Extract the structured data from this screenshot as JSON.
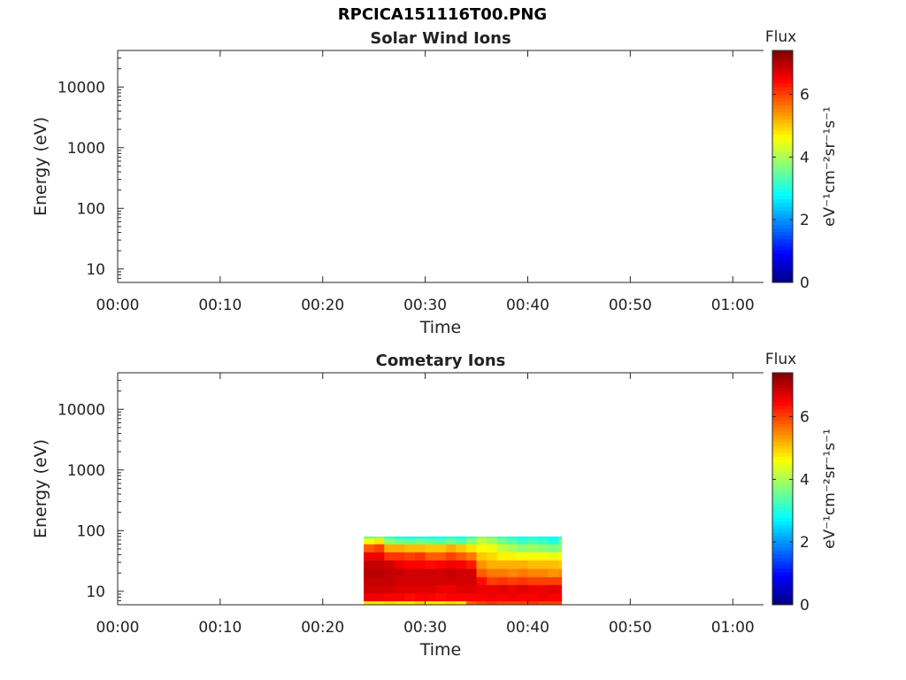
{
  "figure": {
    "title": "RPCICA151116T00.PNG"
  },
  "chart_data": [
    {
      "type": "heatmap",
      "title": "Solar Wind Ions",
      "xlabel": "Time",
      "ylabel": "Energy (eV)",
      "x_ticks": [
        "00:00",
        "00:10",
        "00:20",
        "00:30",
        "00:40",
        "00:50",
        "01:00"
      ],
      "xlim": [
        "00:00",
        "01:03"
      ],
      "y_scale": "log",
      "ylim": [
        6,
        40000
      ],
      "y_ticks": [
        "10",
        "100",
        "1000",
        "10000"
      ],
      "colorbar": {
        "label": "Flux",
        "unit": "eV⁻¹cm⁻²sr⁻¹s⁻¹",
        "range": [
          0,
          7.4
        ],
        "ticks": [
          "0",
          "2",
          "4",
          "6"
        ],
        "colormap": "jet"
      },
      "data": []
    },
    {
      "type": "heatmap",
      "title": "Cometary Ions",
      "xlabel": "Time",
      "ylabel": "Energy (eV)",
      "x_ticks": [
        "00:00",
        "00:10",
        "00:20",
        "00:30",
        "00:40",
        "00:50",
        "01:00"
      ],
      "xlim": [
        "00:00",
        "01:03"
      ],
      "y_scale": "log",
      "ylim": [
        6,
        40000
      ],
      "y_ticks": [
        "10",
        "100",
        "1000",
        "10000"
      ],
      "colorbar": {
        "label": "Flux",
        "unit": "eV⁻¹cm⁻²sr⁻¹s⁻¹",
        "range": [
          0,
          7.4
        ],
        "ticks": [
          "0",
          "2",
          "4",
          "6"
        ],
        "colormap": "jet"
      },
      "data_time_range": [
        "00:24",
        "00:43"
      ],
      "energy_levels": [
        6,
        8,
        11,
        15,
        20,
        28,
        38,
        52,
        70,
        80
      ],
      "time_columns": [
        "00:24",
        "00:25",
        "00:26",
        "00:27",
        "00:28",
        "00:29",
        "00:30",
        "00:31",
        "00:32",
        "00:33",
        "00:34",
        "00:35",
        "00:36",
        "00:37",
        "00:38",
        "00:39",
        "00:40",
        "00:41",
        "00:42",
        "00:43"
      ],
      "flux": [
        [
          4.8,
          4.8,
          4.9,
          4.8,
          4.8,
          5.0,
          4.8,
          4.8,
          4.9,
          4.8,
          5.8,
          6.0,
          6.1,
          6.0,
          6.0,
          6.0,
          6.1,
          6.0,
          6.0,
          6.0
        ],
        [
          6.6,
          6.6,
          6.5,
          6.5,
          6.4,
          6.5,
          6.5,
          6.4,
          6.5,
          6.5,
          6.5,
          6.5,
          6.6,
          6.5,
          6.6,
          6.5,
          6.5,
          6.6,
          6.5,
          6.5
        ],
        [
          6.8,
          6.8,
          6.8,
          6.7,
          6.7,
          6.7,
          6.7,
          6.6,
          6.6,
          6.7,
          6.7,
          6.6,
          6.6,
          6.7,
          6.6,
          6.7,
          6.6,
          6.6,
          6.7,
          6.6
        ],
        [
          6.9,
          6.9,
          6.9,
          6.8,
          6.8,
          6.8,
          6.8,
          6.8,
          6.8,
          6.8,
          6.8,
          6.4,
          6.0,
          6.1,
          6.0,
          6.1,
          6.0,
          6.0,
          6.0,
          6.0
        ],
        [
          7.0,
          7.0,
          6.9,
          6.9,
          6.8,
          6.8,
          6.8,
          6.8,
          6.9,
          6.8,
          6.8,
          5.8,
          5.6,
          5.6,
          5.5,
          5.6,
          5.5,
          5.5,
          5.4,
          5.5
        ],
        [
          6.9,
          6.9,
          6.8,
          6.6,
          6.5,
          6.5,
          6.4,
          6.5,
          6.6,
          6.5,
          6.3,
          5.4,
          5.2,
          5.2,
          5.2,
          5.2,
          5.1,
          5.1,
          5.1,
          5.0
        ],
        [
          6.6,
          6.6,
          6.1,
          6.1,
          6.0,
          6.1,
          5.8,
          5.8,
          6.0,
          5.8,
          5.6,
          5.0,
          4.9,
          4.7,
          4.7,
          4.6,
          4.6,
          4.6,
          4.5,
          4.6
        ],
        [
          5.8,
          6.0,
          5.2,
          5.2,
          5.1,
          5.1,
          5.0,
          5.0,
          5.2,
          5.0,
          4.8,
          4.6,
          4.5,
          4.2,
          4.0,
          3.8,
          3.9,
          3.8,
          3.7,
          3.8
        ],
        [
          4.6,
          4.8,
          3.8,
          3.6,
          3.5,
          3.6,
          3.5,
          3.4,
          3.6,
          3.4,
          3.8,
          4.2,
          4.0,
          3.6,
          3.4,
          3.2,
          3.3,
          3.2,
          3.0,
          3.6
        ],
        [
          3.6,
          3.8,
          3.2,
          2.9,
          2.8,
          2.9,
          2.8,
          2.8,
          3.0,
          2.8,
          3.2,
          3.8,
          3.6,
          3.2,
          3.0,
          2.8,
          3.0,
          2.9,
          2.8,
          3.2
        ]
      ]
    }
  ]
}
